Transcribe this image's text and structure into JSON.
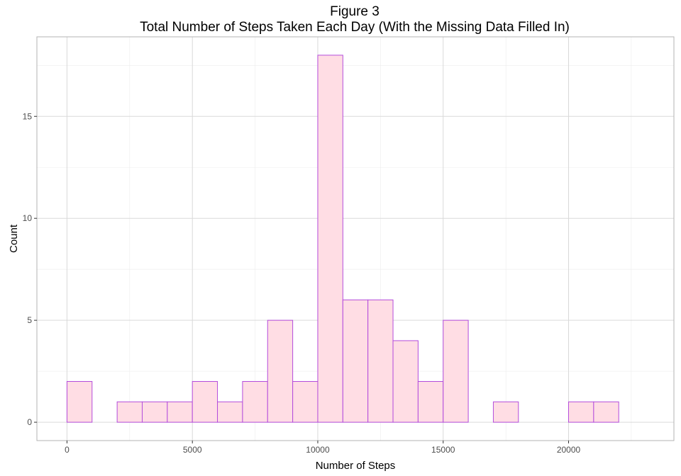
{
  "chart_data": {
    "type": "bar",
    "title": "Figure 3",
    "subtitle": "Total Number of Steps Taken Each Day (With the Missing Data Filled In)",
    "xlabel": "Number of Steps",
    "ylabel": "Count",
    "xlim": [
      -1000,
      23000
    ],
    "ylim": [
      0,
      18
    ],
    "x_ticks": [
      0,
      5000,
      10000,
      15000,
      20000
    ],
    "y_ticks": [
      0,
      5,
      10,
      15
    ],
    "grid": true,
    "bin_width": 1000,
    "bins": [
      {
        "start": -1000,
        "end": 0,
        "count": 0
      },
      {
        "start": 0,
        "end": 1000,
        "count": 2
      },
      {
        "start": 1000,
        "end": 2000,
        "count": 0
      },
      {
        "start": 2000,
        "end": 3000,
        "count": 1
      },
      {
        "start": 3000,
        "end": 4000,
        "count": 1
      },
      {
        "start": 4000,
        "end": 5000,
        "count": 1
      },
      {
        "start": 5000,
        "end": 6000,
        "count": 2
      },
      {
        "start": 6000,
        "end": 7000,
        "count": 1
      },
      {
        "start": 7000,
        "end": 8000,
        "count": 2
      },
      {
        "start": 8000,
        "end": 9000,
        "count": 5
      },
      {
        "start": 9000,
        "end": 10000,
        "count": 2
      },
      {
        "start": 10000,
        "end": 11000,
        "count": 18
      },
      {
        "start": 11000,
        "end": 12000,
        "count": 6
      },
      {
        "start": 12000,
        "end": 13000,
        "count": 6
      },
      {
        "start": 13000,
        "end": 14000,
        "count": 4
      },
      {
        "start": 14000,
        "end": 15000,
        "count": 2
      },
      {
        "start": 15000,
        "end": 16000,
        "count": 5
      },
      {
        "start": 16000,
        "end": 17000,
        "count": 0
      },
      {
        "start": 17000,
        "end": 18000,
        "count": 1
      },
      {
        "start": 18000,
        "end": 19000,
        "count": 0
      },
      {
        "start": 19000,
        "end": 20000,
        "count": 0
      },
      {
        "start": 20000,
        "end": 21000,
        "count": 1
      },
      {
        "start": 21000,
        "end": 22000,
        "count": 1
      },
      {
        "start": 22000,
        "end": 23000,
        "count": 0
      }
    ],
    "colors": {
      "fill": "#ffdde4",
      "outline": "#b44cdc",
      "grid": "#d9d9d9",
      "panel_border": "#b3b3b3"
    }
  }
}
